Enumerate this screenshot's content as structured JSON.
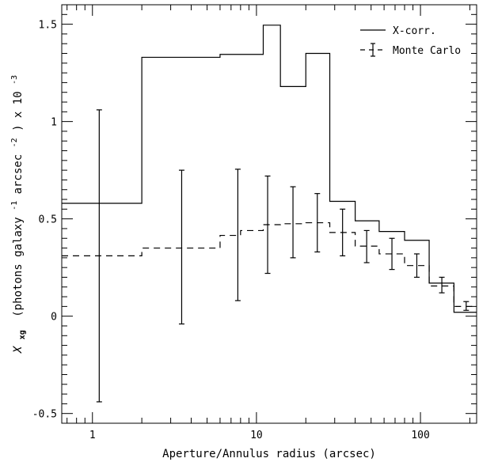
{
  "chart_data": {
    "type": "step",
    "title": "",
    "xlabel": "Aperture/Annulus radius (arcsec)",
    "ylabel": {
      "prefix": "X",
      "subscript": "xg",
      "rest": "(photons galaxy",
      "sup1": "-1",
      "mid": " arcsec",
      "sup2": "-2",
      "suffix": ") x 10",
      "sup3": "-3"
    },
    "xscale": "log",
    "xlim": [
      0.65,
      220
    ],
    "ylim": [
      -0.55,
      1.6
    ],
    "xticks_major": [
      1,
      10,
      100
    ],
    "xtick_labels": [
      "1",
      "10",
      "100"
    ],
    "yticks_major": [
      -0.5,
      0,
      0.5,
      1,
      1.5
    ],
    "ytick_labels": [
      "-0.5",
      "0",
      "0.5",
      "1",
      "1.5"
    ],
    "legend_position": "top-right",
    "series": [
      {
        "name": "X-corr.",
        "style": "solid-step",
        "edges": [
          0.65,
          2,
          6,
          8,
          11,
          14,
          20,
          28,
          40,
          56,
          80,
          113,
          160,
          220
        ],
        "values": [
          0.58,
          1.33,
          1.345,
          1.345,
          1.495,
          1.18,
          1.35,
          0.59,
          0.49,
          0.435,
          0.39,
          0.17,
          0.02
        ]
      },
      {
        "name": "Monte Carlo",
        "style": "dashed-step-errorbars",
        "edges": [
          0.65,
          2,
          6,
          8,
          11,
          14,
          20,
          28,
          40,
          56,
          80,
          113,
          160,
          220
        ],
        "values": [
          0.31,
          0.35,
          0.415,
          0.44,
          0.47,
          0.475,
          0.48,
          0.43,
          0.36,
          0.32,
          0.26,
          0.155,
          0.05
        ],
        "errorbars": [
          {
            "x": 1.1,
            "y": 0.31,
            "low": -0.44,
            "high": 1.06
          },
          {
            "x": 3.5,
            "y": 0.35,
            "low": -0.04,
            "high": 0.75
          },
          {
            "x": 7.7,
            "y": 0.415,
            "low": 0.08,
            "high": 0.755
          },
          {
            "x": 11.7,
            "y": 0.47,
            "low": 0.22,
            "high": 0.72
          },
          {
            "x": 16.7,
            "y": 0.48,
            "low": 0.3,
            "high": 0.665
          },
          {
            "x": 23.5,
            "y": 0.48,
            "low": 0.33,
            "high": 0.63
          },
          {
            "x": 33.5,
            "y": 0.43,
            "low": 0.31,
            "high": 0.55
          },
          {
            "x": 47,
            "y": 0.36,
            "low": 0.275,
            "high": 0.44
          },
          {
            "x": 67,
            "y": 0.32,
            "low": 0.24,
            "high": 0.4
          },
          {
            "x": 95,
            "y": 0.26,
            "low": 0.2,
            "high": 0.32
          },
          {
            "x": 135,
            "y": 0.155,
            "low": 0.12,
            "high": 0.2
          },
          {
            "x": 190,
            "y": 0.05,
            "low": 0.03,
            "high": 0.075
          }
        ]
      }
    ]
  }
}
